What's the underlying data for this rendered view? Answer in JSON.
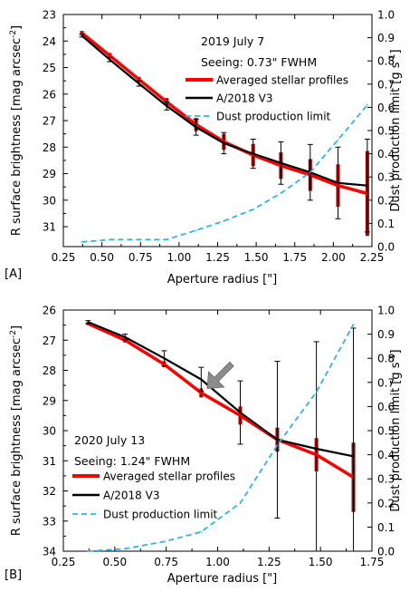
{
  "chart_data": [
    {
      "type": "line",
      "panel_label": "[A]",
      "annotations": [
        "2019 July 7",
        "Seeing: 0.73\" FWHM"
      ],
      "xlabel": "Aperture radius [\"]",
      "ylabel": "R surface brightness [mag arcsec",
      "ylabel_sup": "-2",
      "ylabel_end": "]",
      "y2label": "Dust production limit [g s",
      "y2label_sup": "-1",
      "y2label_end": "]",
      "xlim": [
        0.25,
        2.25
      ],
      "xticks": [
        "0.25",
        "0.50",
        "0.75",
        "1.00",
        "1.25",
        "1.50",
        "1.75",
        "2.00",
        "2.25"
      ],
      "ylim": [
        23,
        31.75
      ],
      "ylim_inverted": true,
      "yticks": [
        "23",
        "24",
        "25",
        "26",
        "27",
        "28",
        "29",
        "30",
        "31"
      ],
      "y2lim": [
        0,
        1.0
      ],
      "y2ticks": [
        "0.0",
        "0.1",
        "0.2",
        "0.3",
        "0.4",
        "0.5",
        "0.6",
        "0.7",
        "0.8",
        "0.9",
        "1.0"
      ],
      "legend_position": "middle-right",
      "series": [
        {
          "name": "Averaged stellar profiles",
          "color": "#ff0000",
          "axis": "left",
          "x": [
            0.37,
            0.55,
            0.74,
            0.92,
            1.11,
            1.29,
            1.48,
            1.66,
            1.85,
            2.03,
            2.22
          ],
          "y": [
            23.7,
            24.55,
            25.45,
            26.3,
            27.15,
            27.8,
            28.3,
            28.7,
            29.05,
            29.45,
            29.75
          ],
          "yerr": [
            0.08,
            0.1,
            0.1,
            0.15,
            0.25,
            0.3,
            0.42,
            0.5,
            0.6,
            0.8,
            1.6
          ]
        },
        {
          "name": "A/2018 V3",
          "color": "#000000",
          "axis": "left",
          "x": [
            0.37,
            0.55,
            0.74,
            0.92,
            1.11,
            1.29,
            1.48,
            1.66,
            1.85,
            2.03,
            2.22
          ],
          "y": [
            23.8,
            24.7,
            25.6,
            26.45,
            27.25,
            27.85,
            28.25,
            28.6,
            28.95,
            29.35,
            29.45
          ],
          "yerr": [
            0.05,
            0.08,
            0.1,
            0.15,
            0.3,
            0.4,
            0.55,
            0.8,
            1.05,
            1.35,
            1.75
          ]
        },
        {
          "name": "Dust production limit",
          "color": "#2cb5e8",
          "axis": "right",
          "dashed": true,
          "x": [
            0.37,
            0.55,
            0.74,
            0.92,
            1.11,
            1.29,
            1.48,
            1.66,
            1.85,
            2.03,
            2.22
          ],
          "y": [
            0.02,
            0.03,
            0.03,
            0.03,
            0.07,
            0.11,
            0.16,
            0.23,
            0.32,
            0.46,
            0.61
          ]
        }
      ]
    },
    {
      "type": "line",
      "panel_label": "[B]",
      "annotations": [
        "2020 July 13",
        "Seeing: 1.24\" FWHM"
      ],
      "xlabel": "Aperture radius [\"]",
      "ylabel": "R surface brightness [mag arcsec",
      "ylabel_sup": "-2",
      "ylabel_end": "]",
      "y2label": "Dust production limit [g s",
      "y2label_sup": "-1",
      "y2label_end": "]",
      "xlim": [
        0.25,
        1.75
      ],
      "xticks": [
        "0.25",
        "0.50",
        "0.75",
        "1.00",
        "1.25",
        "1.50",
        "1.75"
      ],
      "ylim": [
        26,
        34
      ],
      "ylim_inverted": true,
      "yticks": [
        "26",
        "27",
        "28",
        "29",
        "30",
        "31",
        "32",
        "33",
        "34"
      ],
      "y2lim": [
        0,
        1.0
      ],
      "y2ticks": [
        "0.0",
        "0.1",
        "0.2",
        "0.3",
        "0.4",
        "0.5",
        "0.6",
        "0.7",
        "0.8",
        "0.9",
        "1.0"
      ],
      "legend_position": "bottom-left",
      "arrow_target": {
        "x": 0.95,
        "y": 28.6
      },
      "series": [
        {
          "name": "Averaged stellar profiles",
          "color": "#ff0000",
          "axis": "left",
          "x": [
            0.37,
            0.55,
            0.74,
            0.92,
            1.11,
            1.29,
            1.48,
            1.66
          ],
          "y": [
            26.45,
            27.0,
            27.8,
            28.75,
            29.5,
            30.3,
            30.8,
            31.55
          ],
          "yerr": [
            0.05,
            0.08,
            0.1,
            0.15,
            0.3,
            0.4,
            0.55,
            1.15
          ]
        },
        {
          "name": "A/2018 V3",
          "color": "#000000",
          "axis": "left",
          "x": [
            0.37,
            0.55,
            0.74,
            0.92,
            1.11,
            1.29,
            1.48,
            1.66
          ],
          "y": [
            26.4,
            26.9,
            27.6,
            28.3,
            29.4,
            30.3,
            30.6,
            30.85
          ],
          "yerr": [
            0.05,
            0.1,
            0.25,
            0.4,
            1.05,
            2.6,
            3.55,
            4.25
          ]
        },
        {
          "name": "Dust production limit",
          "color": "#2cb5e8",
          "axis": "right",
          "dashed": true,
          "x": [
            0.37,
            0.55,
            0.74,
            0.92,
            1.11,
            1.29,
            1.48,
            1.66
          ],
          "y": [
            0.0,
            0.01,
            0.04,
            0.08,
            0.2,
            0.44,
            0.66,
            0.94
          ]
        }
      ]
    }
  ]
}
